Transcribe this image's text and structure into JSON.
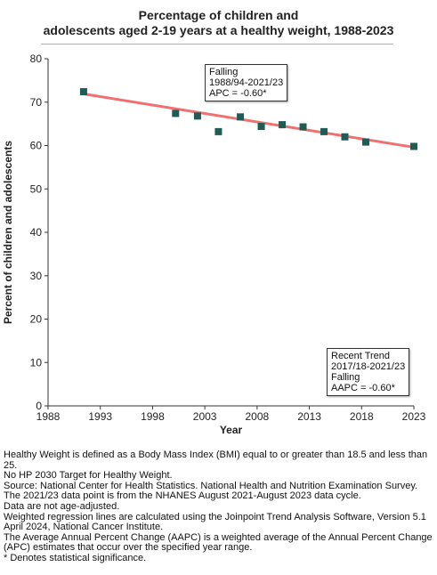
{
  "chart_data": {
    "type": "scatter",
    "title_line1": "Percentage of children and",
    "title_line2": "adolescents aged 2-19 years at a healthy weight, 1988-2023",
    "xlabel": "Year",
    "ylabel": "Percent of children and adolescents",
    "xlim": [
      1988,
      2023
    ],
    "ylim": [
      0,
      80
    ],
    "x_ticks": [
      "1988",
      "1993",
      "1998",
      "2003",
      "2008",
      "2013",
      "2018",
      "2023"
    ],
    "y_ticks": [
      "0",
      "10",
      "20",
      "30",
      "40",
      "50",
      "60",
      "70",
      "80"
    ],
    "grid": false,
    "series": [
      {
        "type": "scatter",
        "color": "#1f5c55",
        "x": [
          1991.4,
          2000.2,
          2002.3,
          2004.3,
          2006.4,
          2008.4,
          2010.4,
          2012.4,
          2014.4,
          2016.4,
          2018.4,
          2023.0
        ],
        "y": [
          72.4,
          67.4,
          66.8,
          63.2,
          66.6,
          64.4,
          64.8,
          64.3,
          63.2,
          62.0,
          60.8,
          59.8
        ]
      },
      {
        "type": "line",
        "color": "#f07070",
        "x": [
          1991.4,
          2023.0
        ],
        "y": [
          71.9,
          59.6
        ]
      }
    ],
    "annotations": [
      {
        "id": "falling",
        "lines": [
          "Falling",
          "1988/94-2021/23",
          "APC = -0.60*"
        ]
      },
      {
        "id": "recent",
        "lines": [
          "Recent Trend",
          "2017/18-2021/23",
          "Falling",
          "AAPC = -0.60*"
        ]
      }
    ]
  },
  "footnotes": [
    "Healthy Weight is defined as a Body Mass Index (BMI) equal to or greater than 18.5 and less than 25.",
    "No HP 2030 Target for Healthy Weight.",
    "Source: National Center for Health Statistics. National Health and Nutrition Examination Survey.",
    "The 2021/23 data point is from the NHANES August 2021-August 2023 data cycle.",
    "Data are not age-adjusted.",
    "Weighted regression lines are calculated using the Joinpoint Trend Analysis Software, Version 5.1 April 2024, National Cancer Institute.",
    "The Average Annual Percent Change (AAPC) is a weighted average of the Annual Percent Change (APC) estimates that occur over the specified year range.",
    "* Denotes statistical significance."
  ]
}
